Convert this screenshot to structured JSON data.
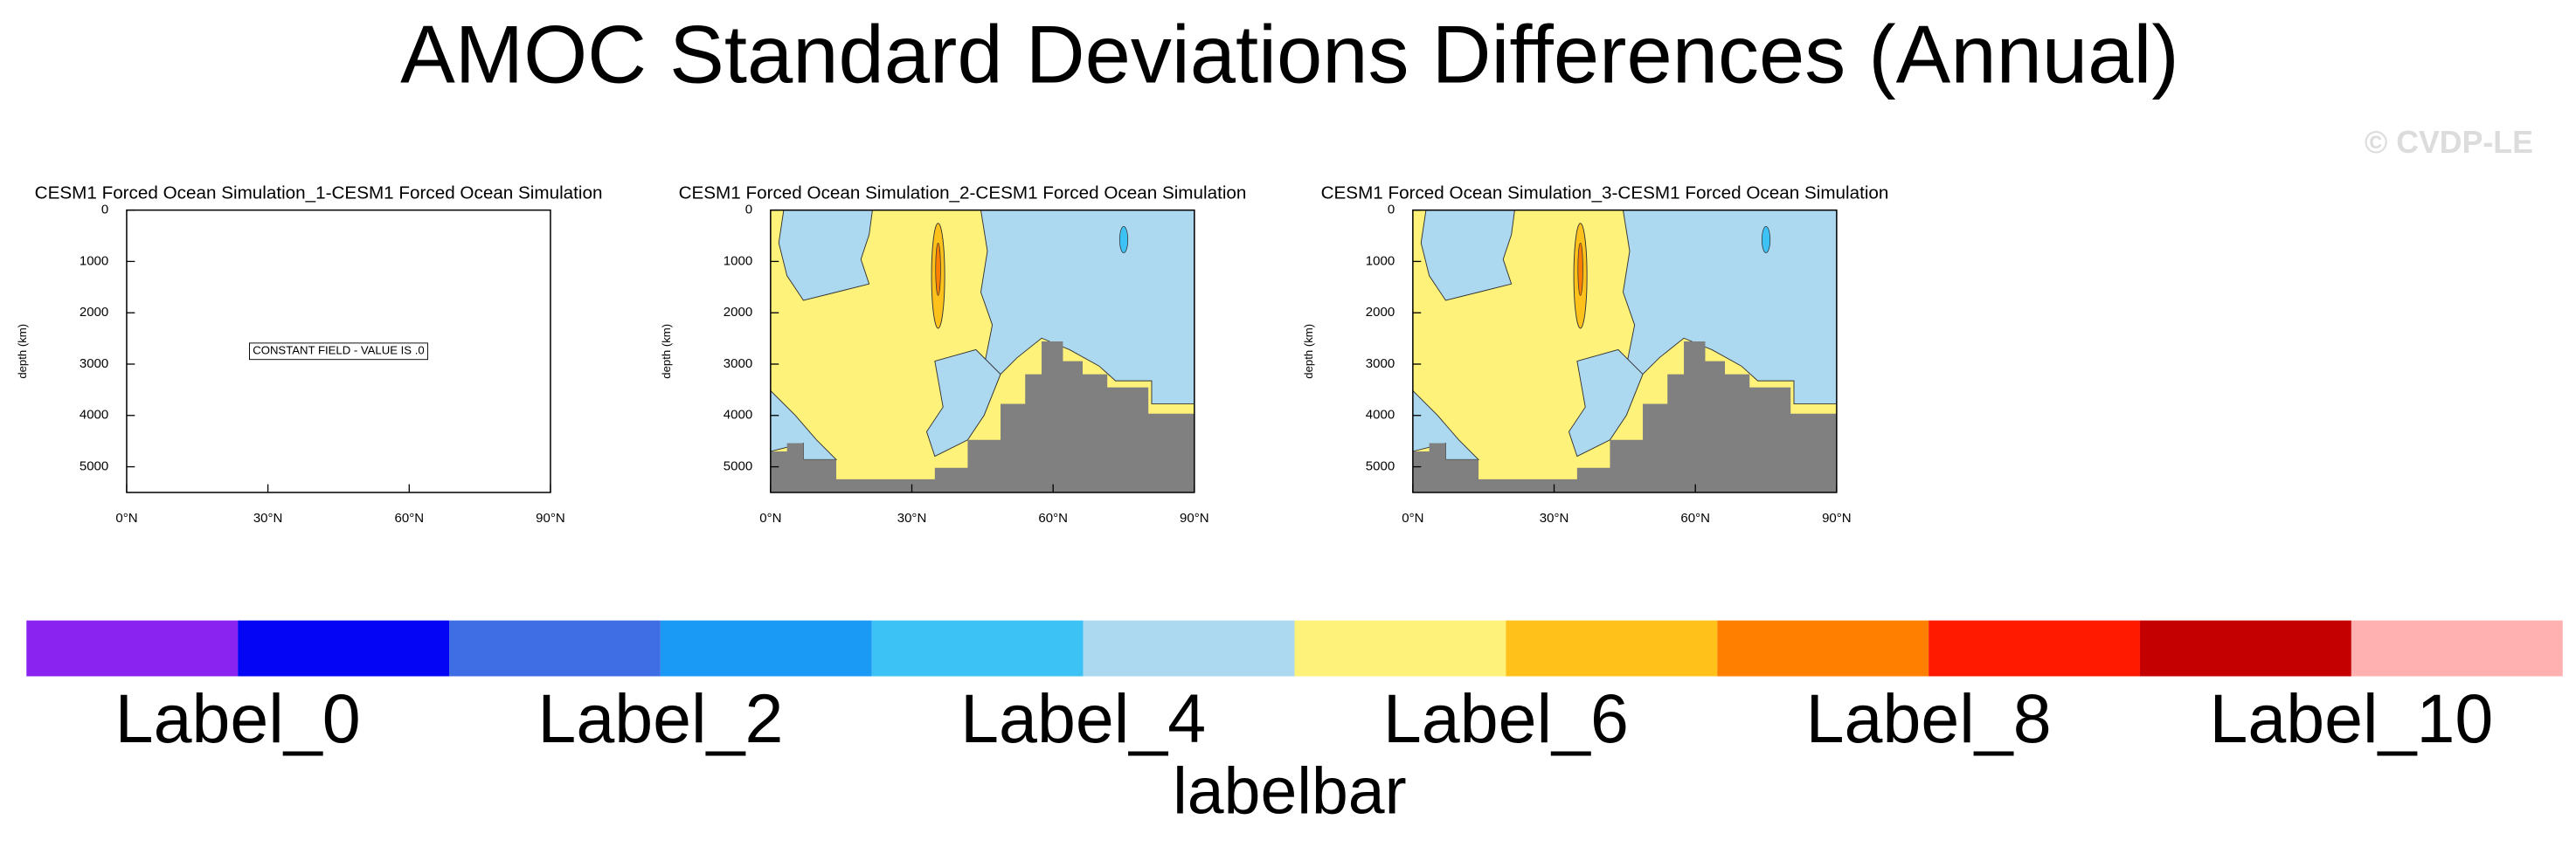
{
  "title": "AMOC Standard Deviations Differences (Annual)",
  "watermark": "© CVDP-LE",
  "chart_data": [
    {
      "type": "contour",
      "title": "CESM1 Forced Ocean Simulation_1-CESM1 Forced Ocean Simulation",
      "ylabel": "depth (km)",
      "annotation": "CONSTANT FIELD - VALUE IS .0",
      "ylim": [
        0,
        5500
      ],
      "y_reversed": true,
      "yticks": [
        0,
        1000,
        2000,
        3000,
        4000,
        5000
      ],
      "xlim": [
        0,
        90
      ],
      "xticks": [
        {
          "value": 0,
          "label": "0°N"
        },
        {
          "value": 30,
          "label": "30°N"
        },
        {
          "value": 60,
          "label": "60°N"
        },
        {
          "value": 90,
          "label": "90°N"
        }
      ]
    },
    {
      "type": "contour",
      "title": "CESM1 Forced Ocean Simulation_2-CESM1 Forced Ocean Simulation",
      "ylabel": "depth (km)",
      "ylim": [
        0,
        5500
      ],
      "y_reversed": true,
      "yticks": [
        0,
        1000,
        2000,
        3000,
        4000,
        5000
      ],
      "xlim": [
        0,
        90
      ],
      "xticks": [
        {
          "value": 0,
          "label": "0°N"
        },
        {
          "value": 30,
          "label": "30°N"
        },
        {
          "value": 60,
          "label": "60°N"
        },
        {
          "value": 90,
          "label": "90°N"
        }
      ]
    },
    {
      "type": "contour",
      "title": "CESM1 Forced Ocean Simulation_3-CESM1 Forced Ocean Simulation",
      "ylabel": "depth (km)",
      "ylim": [
        0,
        5500
      ],
      "y_reversed": true,
      "yticks": [
        0,
        1000,
        2000,
        3000,
        4000,
        5000
      ],
      "xlim": [
        0,
        90
      ],
      "xticks": [
        {
          "value": 0,
          "label": "0°N"
        },
        {
          "value": 30,
          "label": "30°N"
        },
        {
          "value": 60,
          "label": "60°N"
        },
        {
          "value": 90,
          "label": "90°N"
        }
      ]
    }
  ],
  "labelbar": {
    "title": "labelbar",
    "colors": [
      "#8a22f0",
      "#0505f5",
      "#3f6ee4",
      "#1a9af5",
      "#3cc2f5",
      "#acd8f0",
      "#fff27a",
      "#ffc11a",
      "#ff7f00",
      "#ff1a00",
      "#c40000",
      "#ffb0b0"
    ],
    "labels": [
      "Label_0",
      "Label_2",
      "Label_4",
      "Label_6",
      "Label_8",
      "Label_10"
    ]
  }
}
